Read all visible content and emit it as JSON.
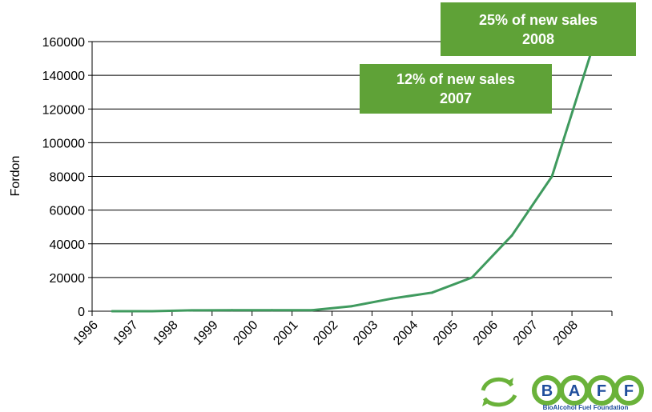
{
  "colors": {
    "line": "#3f9a5e",
    "callout_bg": "#5fa237",
    "axis": "#000000",
    "grid": "#000000",
    "logo_green": "#6ab23a",
    "logo_blue": "#1f4e9c"
  },
  "chart_data": {
    "type": "line",
    "title": "",
    "xlabel": "",
    "ylabel": "Fordon",
    "categories": [
      "1996",
      "1997",
      "1998",
      "1999",
      "2000",
      "2001",
      "2002",
      "2003",
      "2004",
      "2005",
      "2006",
      "2007",
      "2008"
    ],
    "series": [
      {
        "values": [
          0,
          0,
          500,
          600,
          600,
          600,
          3000,
          7500,
          11000,
          20000,
          45000,
          80000,
          155000
        ]
      }
    ],
    "ylim": [
      0,
      160000
    ],
    "yticks": [
      "0",
      "20000",
      "40000",
      "60000",
      "80000",
      "100000",
      "120000",
      "140000",
      "160000"
    ],
    "grid": true,
    "annotations": [
      {
        "id": "2007",
        "line1": "12% of new sales",
        "line2": "2007"
      },
      {
        "id": "2008",
        "line1": "25% of  new sales",
        "line2": "2008"
      }
    ]
  },
  "logo": {
    "letters": [
      "B",
      "A",
      "F",
      "F"
    ],
    "tagline": "BioAlcohol Fuel Foundation"
  }
}
